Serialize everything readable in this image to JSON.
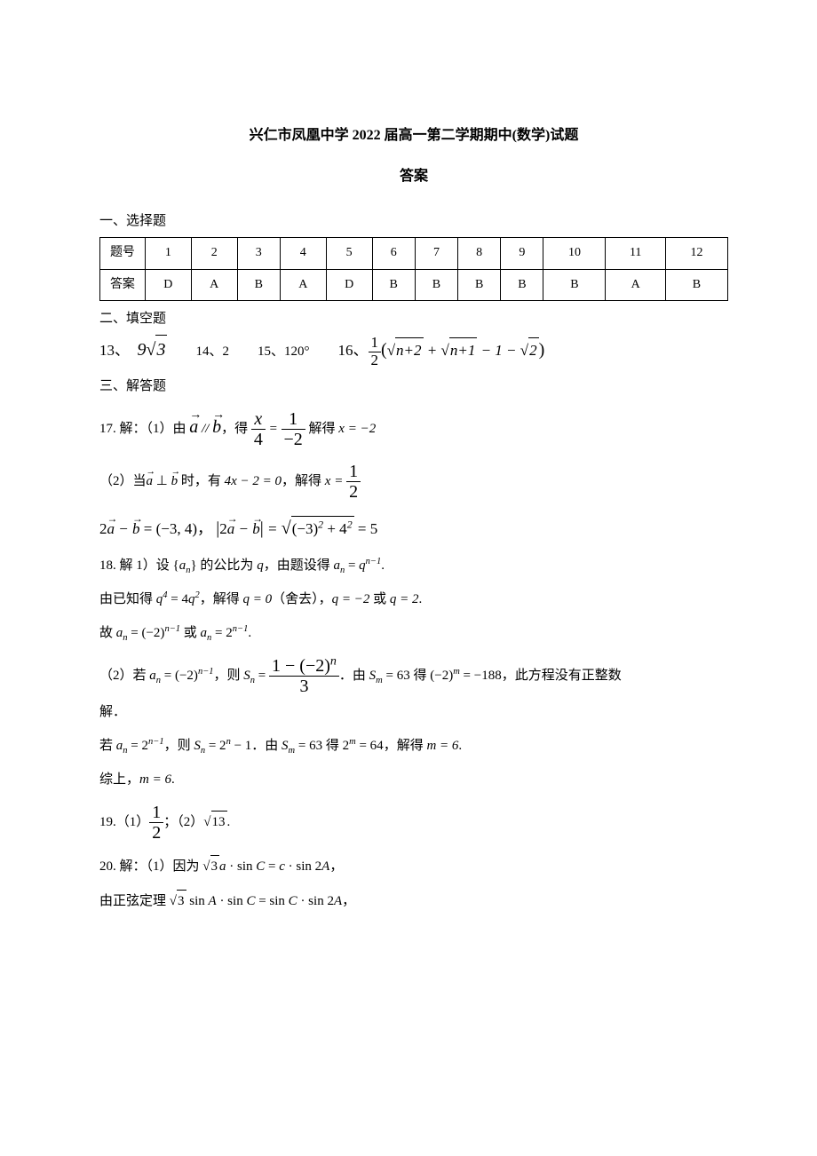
{
  "title": "兴仁市凤凰中学 2022 届高一第二学期期中(数学)试题",
  "subtitle": "答案",
  "section1": "一、选择题",
  "section2": "二、填空题",
  "section3": "三、解答题",
  "answer_table": {
    "row_label": "题号",
    "ans_label": "答案",
    "numbers": [
      "1",
      "2",
      "3",
      "4",
      "5",
      "6",
      "7",
      "8",
      "9",
      "10",
      "11",
      "12"
    ],
    "answers": [
      "D",
      "A",
      "B",
      "A",
      "D",
      "B",
      "B",
      "B",
      "B",
      "B",
      "A",
      "B"
    ]
  },
  "q13": {
    "label": "13、",
    "value_prefix": "9",
    "value_rad": "3"
  },
  "q14": {
    "label": "14、",
    "value": "2"
  },
  "q15": {
    "label": "15、",
    "value": "120°"
  },
  "q16": {
    "label": "16、",
    "frac_num": "1",
    "frac_den": "2",
    "paren_open": "(",
    "t1": "n+2",
    "t2": "n+1",
    "mid": " − 1 − ",
    "t3": "2",
    "paren_close": ")"
  },
  "q17_1": {
    "prefix": "17. 解：（1）由",
    "a": "a",
    "b": "b",
    "rel": " // ",
    "mid": "，得 ",
    "fr1n": "x",
    "fr1d": "4",
    "eq": " = ",
    "fr2n": "1",
    "fr2d": "−2",
    "suffix": " 解得 ",
    "result": "x = −2"
  },
  "q17_2a": {
    "prefix": "（2）当",
    "a": "a",
    "b": "b",
    "perp": " ⊥ ",
    "mid": " 时，有 ",
    "eq1": "4x − 2 = 0",
    "mid2": "，解得 ",
    "fr_n": "1",
    "fr_d": "2",
    "xeq": "x = "
  },
  "q17_2b": {
    "lhs": "2",
    "a": "a",
    "minus": " − ",
    "b": "b",
    "eq": " = (−3, 4)",
    "sep": "，",
    "bar_open": "|",
    "bar_close": "|",
    "two": "2",
    "inner": " = ",
    "rad_inner": "(−3)",
    "sq1": "2",
    "plus": " + 4",
    "sq2": "2",
    "eq5": " = 5"
  },
  "q18_1a": {
    "prefix": "18. 解 1）设 ",
    "set_open": "{",
    "an": "a",
    "nsub": "n",
    "set_close": "}",
    "mid": " 的公比为 ",
    "q": "q",
    "mid2": "，由题设得 ",
    "an2": "a",
    "n2": "n",
    "eq": " = ",
    "qn": "q",
    "exp": "n−1",
    "dot": "."
  },
  "q18_1b": {
    "prefix": "由已知得 ",
    "q4": "q",
    "e4": "4",
    "eq": " = 4",
    "q2": "q",
    "e2": "2",
    "mid": "，解得 ",
    "r1": "q = 0",
    "paren": "（舍去），",
    "r2": "q = −2",
    "or": " 或 ",
    "r3": "q = 2",
    "dot": "."
  },
  "q18_1c": {
    "prefix": "故 ",
    "an": "a",
    "n": "n",
    "eq": " = (−2)",
    "exp": "n−1",
    "or": " 或 ",
    "an2": "a",
    "n2": "n",
    "eq2": " = 2",
    "exp2": "n−1",
    "dot": "."
  },
  "q18_2a": {
    "prefix": "（2）若 ",
    "an": "a",
    "n": "n",
    "eq": " = (−2)",
    "exp": "n−1",
    "mid": "，则 ",
    "Sn": "S",
    "sn": "n",
    "eq2": " = ",
    "fr_num_l": "1 − (−2)",
    "fr_num_exp": "n",
    "fr_den": "3",
    "mid2": "．由 ",
    "Sm": "S",
    "sm": "m",
    "eq63": " = 63",
    "mid3": " 得 ",
    "neg2m": "(−2)",
    "mexp": "m",
    "eq188": " = −188",
    "suffix": "，此方程没有正整数"
  },
  "q18_2a2": "解．",
  "q18_2b": {
    "prefix": "若 ",
    "an": "a",
    "n": "n",
    "eq": " = 2",
    "exp": "n−1",
    "mid": "，则 ",
    "Sn": "S",
    "sn": "n",
    "eq2": " = 2",
    "expn": "n",
    "minus1": " − 1",
    "mid2": "．由 ",
    "Sm": "S",
    "sm": "m",
    "eq63": " = 63",
    "mid3": " 得 ",
    "twom": "2",
    "mexp": "m",
    "eq64": " = 64",
    "mid4": "，解得 ",
    "m6": "m = 6",
    "dot": "."
  },
  "q18_2c": {
    "prefix": "综上，",
    "m6": "m = 6",
    "dot": "."
  },
  "q19": {
    "prefix": "19.（1）",
    "fr_n": "1",
    "fr_d": "2",
    "mid": "；（2）",
    "rad": "13",
    "dot": "."
  },
  "q20_1": {
    "prefix": "20. 解：（1）因为 ",
    "r1": "3",
    "a": "a",
    "dot1": " · sin ",
    "C": "C",
    "eq": " = ",
    "c": "c",
    "dot2": " · sin 2",
    "A": "A",
    "comma": "，"
  },
  "q20_2": {
    "prefix": "由正弦定理 ",
    "r1": "3",
    "sinA": " sin ",
    "A": "A",
    "dot1": " · sin ",
    "C": "C",
    "eq": " = sin ",
    "C2": "C",
    "dot2": " · sin 2",
    "A2": "A",
    "comma": "，"
  }
}
